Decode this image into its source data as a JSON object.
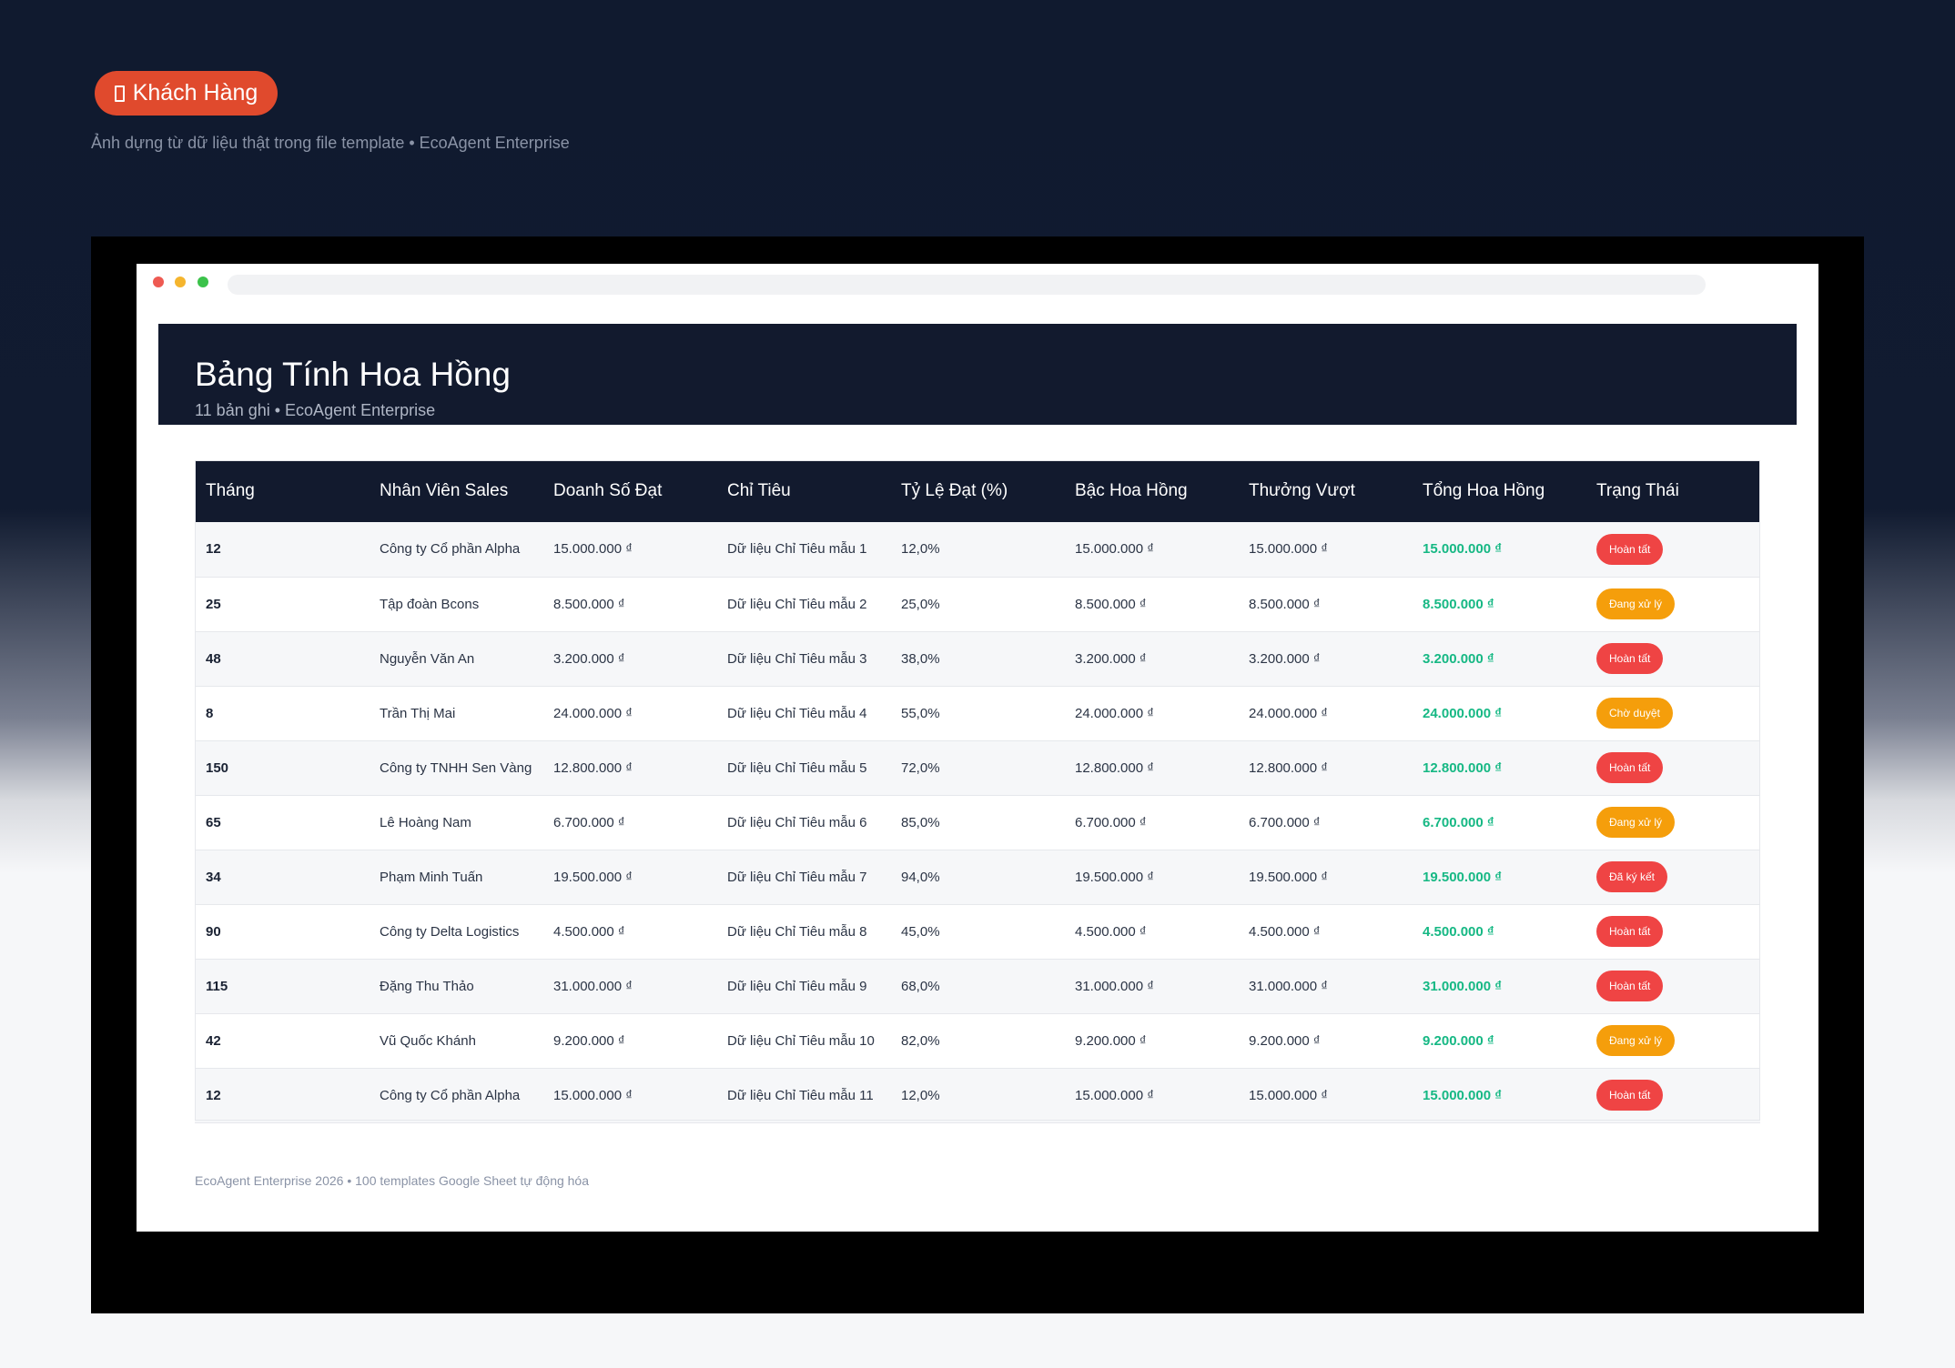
{
  "top_badge": {
    "icon": "folder-icon",
    "label": "Khách Hàng",
    "color": "#e04a2d"
  },
  "caption": "Ảnh dựng từ dữ liệu thật trong file template • EcoAgent Enterprise",
  "header": {
    "title": "Bảng Tính Hoa Hồng",
    "subtitle": "11 bản ghi • EcoAgent Enterprise"
  },
  "table": {
    "columns": [
      "Tháng",
      "Nhân Viên Sales",
      "Doanh Số Đạt",
      "Chỉ Tiêu",
      "Tỷ Lệ Đạt (%)",
      "Bậc Hoa Hồng",
      "Thưởng Vượt",
      "Tổng Hoa Hồng",
      "Trạng Thái"
    ],
    "rows": [
      {
        "thang": "12",
        "nhan_vien": "Công ty Cổ phần Alpha",
        "doanh_so": "15.000.000 ₫",
        "chi_tieu": "Dữ liệu Chỉ Tiêu mẫu 1",
        "ty_le": "12,0%",
        "bac": "15.000.000 ₫",
        "thuong": "15.000.000 ₫",
        "tong": "15.000.000 ₫",
        "trang_thai": "Hoàn tất",
        "status_color": "#ef4444"
      },
      {
        "thang": "25",
        "nhan_vien": "Tập đoàn Bcons",
        "doanh_so": "8.500.000 ₫",
        "chi_tieu": "Dữ liệu Chỉ Tiêu mẫu 2",
        "ty_le": "25,0%",
        "bac": "8.500.000 ₫",
        "thuong": "8.500.000 ₫",
        "tong": "8.500.000 ₫",
        "trang_thai": "Đang xử lý",
        "status_color": "#f59e0b"
      },
      {
        "thang": "48",
        "nhan_vien": "Nguyễn Văn An",
        "doanh_so": "3.200.000 ₫",
        "chi_tieu": "Dữ liệu Chỉ Tiêu mẫu 3",
        "ty_le": "38,0%",
        "bac": "3.200.000 ₫",
        "thuong": "3.200.000 ₫",
        "tong": "3.200.000 ₫",
        "trang_thai": "Hoàn tất",
        "status_color": "#ef4444"
      },
      {
        "thang": "8",
        "nhan_vien": "Trần Thị Mai",
        "doanh_so": "24.000.000 ₫",
        "chi_tieu": "Dữ liệu Chỉ Tiêu mẫu 4",
        "ty_le": "55,0%",
        "bac": "24.000.000 ₫",
        "thuong": "24.000.000 ₫",
        "tong": "24.000.000 ₫",
        "trang_thai": "Chờ duyệt",
        "status_color": "#f59e0b"
      },
      {
        "thang": "150",
        "nhan_vien": "Công ty TNHH Sen Vàng",
        "doanh_so": "12.800.000 ₫",
        "chi_tieu": "Dữ liệu Chỉ Tiêu mẫu 5",
        "ty_le": "72,0%",
        "bac": "12.800.000 ₫",
        "thuong": "12.800.000 ₫",
        "tong": "12.800.000 ₫",
        "trang_thai": "Hoàn tất",
        "status_color": "#ef4444"
      },
      {
        "thang": "65",
        "nhan_vien": "Lê Hoàng Nam",
        "doanh_so": "6.700.000 ₫",
        "chi_tieu": "Dữ liệu Chỉ Tiêu mẫu 6",
        "ty_le": "85,0%",
        "bac": "6.700.000 ₫",
        "thuong": "6.700.000 ₫",
        "tong": "6.700.000 ₫",
        "trang_thai": "Đang xử lý",
        "status_color": "#f59e0b"
      },
      {
        "thang": "34",
        "nhan_vien": "Phạm Minh Tuấn",
        "doanh_so": "19.500.000 ₫",
        "chi_tieu": "Dữ liệu Chỉ Tiêu mẫu 7",
        "ty_le": "94,0%",
        "bac": "19.500.000 ₫",
        "thuong": "19.500.000 ₫",
        "tong": "19.500.000 ₫",
        "trang_thai": "Đã ký kết",
        "status_color": "#ef4444"
      },
      {
        "thang": "90",
        "nhan_vien": "Công ty Delta Logistics",
        "doanh_so": "4.500.000 ₫",
        "chi_tieu": "Dữ liệu Chỉ Tiêu mẫu 8",
        "ty_le": "45,0%",
        "bac": "4.500.000 ₫",
        "thuong": "4.500.000 ₫",
        "tong": "4.500.000 ₫",
        "trang_thai": "Hoàn tất",
        "status_color": "#ef4444"
      },
      {
        "thang": "115",
        "nhan_vien": "Đặng Thu Thảo",
        "doanh_so": "31.000.000 ₫",
        "chi_tieu": "Dữ liệu Chỉ Tiêu mẫu 9",
        "ty_le": "68,0%",
        "bac": "31.000.000 ₫",
        "thuong": "31.000.000 ₫",
        "tong": "31.000.000 ₫",
        "trang_thai": "Hoàn tất",
        "status_color": "#ef4444"
      },
      {
        "thang": "42",
        "nhan_vien": "Vũ Quốc Khánh",
        "doanh_so": "9.200.000 ₫",
        "chi_tieu": "Dữ liệu Chỉ Tiêu mẫu 10",
        "ty_le": "82,0%",
        "bac": "9.200.000 ₫",
        "thuong": "9.200.000 ₫",
        "tong": "9.200.000 ₫",
        "trang_thai": "Đang xử lý",
        "status_color": "#f59e0b"
      },
      {
        "thang": "12",
        "nhan_vien": "Công ty Cổ phần Alpha",
        "doanh_so": "15.000.000 ₫",
        "chi_tieu": "Dữ liệu Chỉ Tiêu mẫu 11",
        "ty_le": "12,0%",
        "bac": "15.000.000 ₫",
        "thuong": "15.000.000 ₫",
        "tong": "15.000.000 ₫",
        "trang_thai": "Hoàn tất",
        "status_color": "#ef4444"
      }
    ]
  },
  "footer": "EcoAgent Enterprise 2026 • 100 templates Google Sheet tự động hóa",
  "colors": {
    "page_bg": "#101a2f",
    "header_bg": "#121a2e",
    "total_green": "#16b884"
  }
}
